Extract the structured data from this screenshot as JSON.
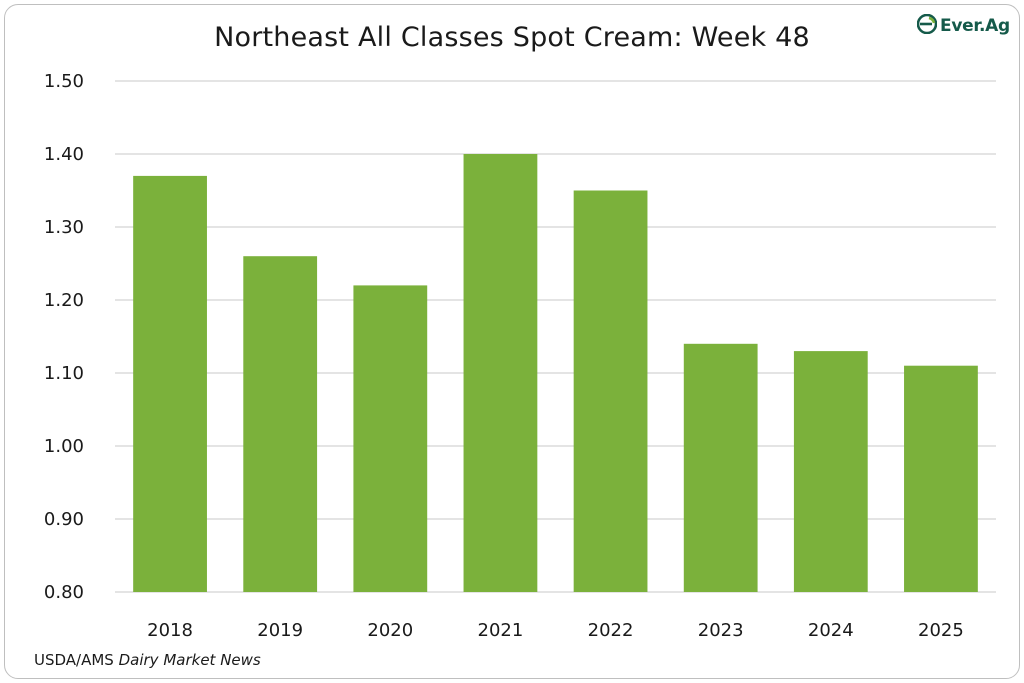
{
  "logo": {
    "text": "Ever.Ag",
    "color": "#155a4a"
  },
  "source": {
    "prefix": "USDA/AMS ",
    "italic": "Dairy Market News"
  },
  "chart_data": {
    "type": "bar",
    "title": "Northeast All Classes Spot Cream: Week 48",
    "categories": [
      "2018",
      "2019",
      "2020",
      "2021",
      "2022",
      "2023",
      "2024",
      "2025"
    ],
    "values": [
      1.37,
      1.26,
      1.22,
      1.4,
      1.35,
      1.14,
      1.13,
      1.11
    ],
    "ylim": [
      0.8,
      1.5
    ],
    "yticks": [
      "0.80",
      "0.90",
      "1.00",
      "1.10",
      "1.20",
      "1.30",
      "1.40",
      "1.50"
    ],
    "xlabel": "",
    "ylabel": "",
    "grid": true,
    "legend": "none",
    "bar_color": "#7bb13b",
    "grid_color": "#c8c8c8"
  }
}
